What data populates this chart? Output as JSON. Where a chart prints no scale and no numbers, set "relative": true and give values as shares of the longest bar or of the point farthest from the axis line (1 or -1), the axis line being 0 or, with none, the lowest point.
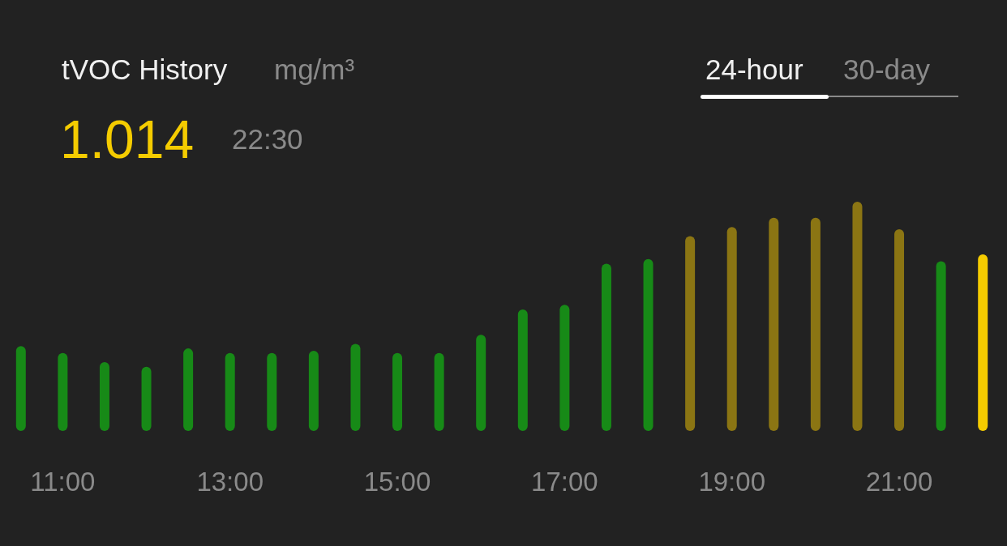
{
  "chart_data": {
    "type": "bar",
    "title": "tVOC History",
    "subtitle": "mg/m³",
    "relative": true,
    "annotations": [
      "1.014",
      "22:30",
      "24-hour",
      "30-day"
    ],
    "categories": [
      null,
      "11:00",
      null,
      null,
      null,
      "13:00",
      null,
      null,
      null,
      "15:00",
      null,
      null,
      null,
      "17:00",
      null,
      null,
      null,
      "19:00",
      null,
      null,
      null,
      "21:00",
      null,
      null
    ],
    "values": [
      0.37,
      0.34,
      0.3,
      0.28,
      0.36,
      0.34,
      0.34,
      0.35,
      0.38,
      0.34,
      0.34,
      0.42,
      0.53,
      0.55,
      0.73,
      0.75,
      0.85,
      0.89,
      0.93,
      0.93,
      1,
      0.88,
      0.74,
      0.77
    ],
    "colors": [
      "#178a17",
      "#178a17",
      "#178a17",
      "#178a17",
      "#178a17",
      "#178a17",
      "#178a17",
      "#178a17",
      "#178a17",
      "#178a17",
      "#178a17",
      "#178a17",
      "#178a17",
      "#178a17",
      "#178a17",
      "#178a17",
      "#8b7513",
      "#8b7513",
      "#8b7513",
      "#8b7513",
      "#8b7513",
      "#8b7513",
      "#178a17",
      "#f5cc00"
    ]
  }
}
